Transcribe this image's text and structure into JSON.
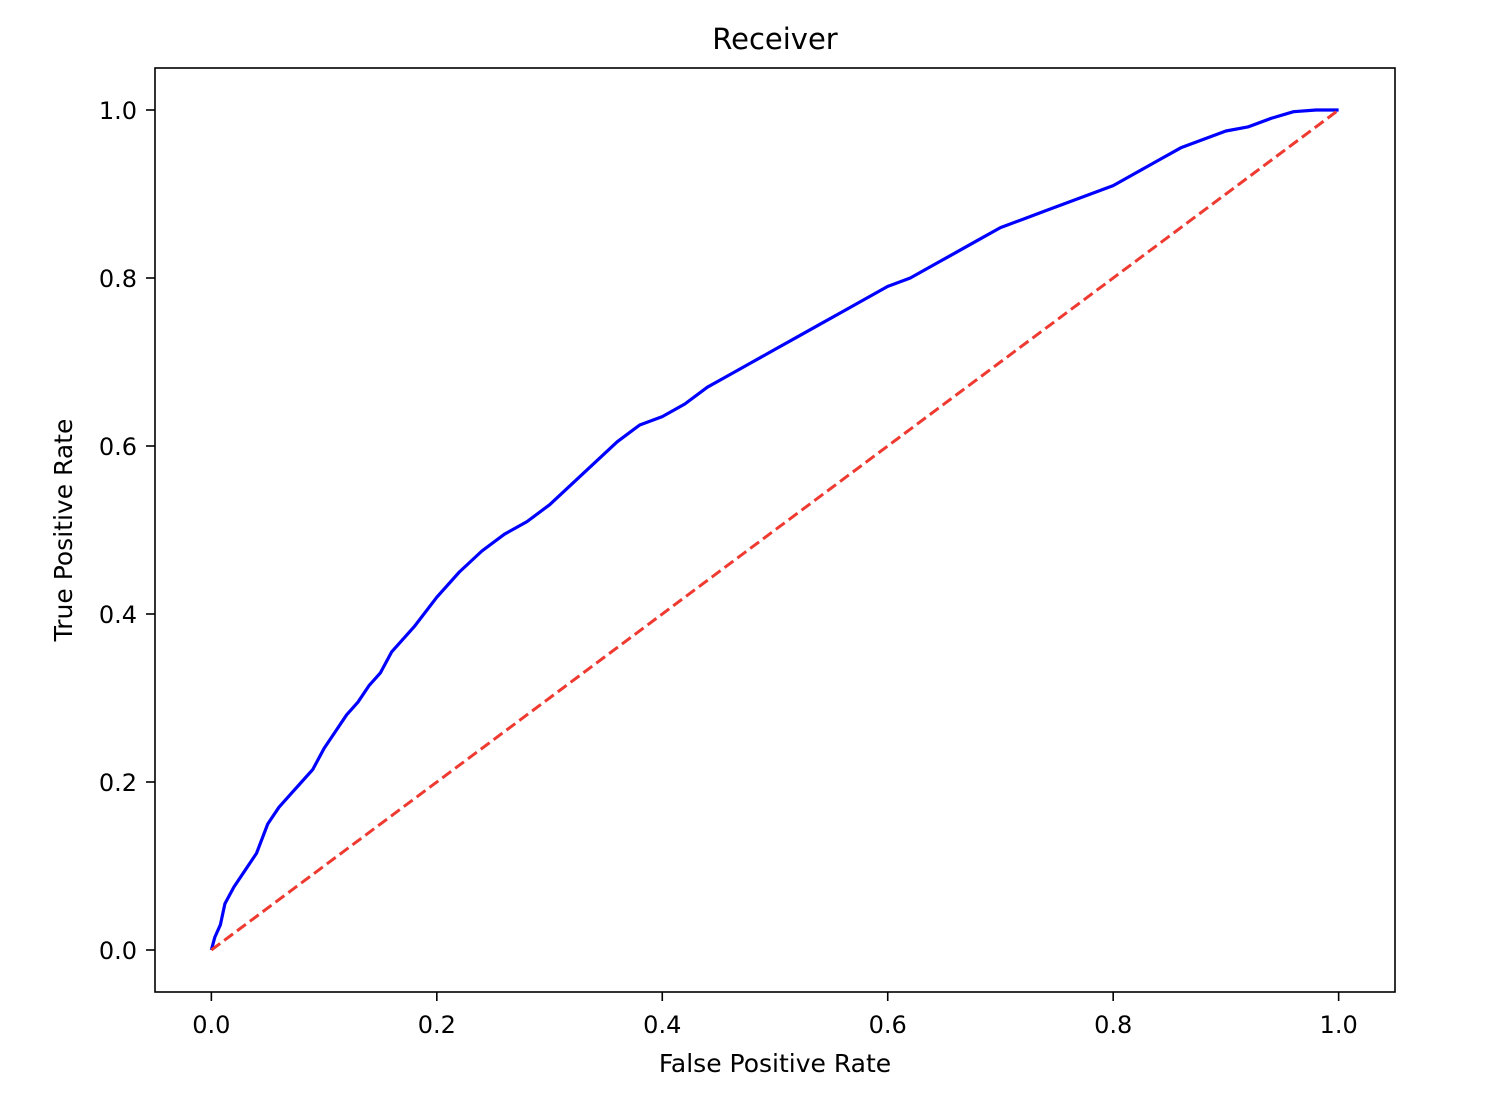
{
  "chart_data": {
    "type": "line",
    "title": "Receiver",
    "xlabel": "False Positive Rate",
    "ylabel": "True Positive Rate",
    "xlim": [
      -0.05,
      1.05
    ],
    "ylim": [
      -0.05,
      1.05
    ],
    "xticks": [
      0.0,
      0.2,
      0.4,
      0.6,
      0.8,
      1.0
    ],
    "yticks": [
      0.0,
      0.2,
      0.4,
      0.6,
      0.8,
      1.0
    ],
    "xtick_labels": [
      "0.0",
      "0.2",
      "0.4",
      "0.6",
      "0.8",
      "1.0"
    ],
    "ytick_labels": [
      "0.0",
      "0.2",
      "0.4",
      "0.6",
      "0.8",
      "1.0"
    ],
    "grid": false,
    "series": [
      {
        "color": "#0000ff",
        "style": "solid",
        "x": [
          0.0,
          0.003,
          0.008,
          0.012,
          0.016,
          0.02,
          0.03,
          0.04,
          0.05,
          0.06,
          0.07,
          0.08,
          0.09,
          0.1,
          0.11,
          0.12,
          0.13,
          0.14,
          0.15,
          0.16,
          0.17,
          0.18,
          0.2,
          0.22,
          0.24,
          0.26,
          0.28,
          0.3,
          0.32,
          0.34,
          0.36,
          0.38,
          0.4,
          0.42,
          0.44,
          0.46,
          0.48,
          0.5,
          0.52,
          0.54,
          0.56,
          0.58,
          0.6,
          0.62,
          0.64,
          0.66,
          0.68,
          0.7,
          0.72,
          0.74,
          0.76,
          0.78,
          0.8,
          0.82,
          0.84,
          0.86,
          0.88,
          0.9,
          0.92,
          0.94,
          0.96,
          0.98,
          1.0
        ],
        "y": [
          0.0,
          0.015,
          0.03,
          0.055,
          0.065,
          0.075,
          0.095,
          0.115,
          0.15,
          0.17,
          0.185,
          0.2,
          0.215,
          0.24,
          0.26,
          0.28,
          0.295,
          0.315,
          0.33,
          0.355,
          0.37,
          0.385,
          0.42,
          0.45,
          0.475,
          0.495,
          0.51,
          0.53,
          0.555,
          0.58,
          0.605,
          0.625,
          0.635,
          0.65,
          0.67,
          0.685,
          0.7,
          0.715,
          0.73,
          0.745,
          0.76,
          0.775,
          0.79,
          0.8,
          0.815,
          0.83,
          0.845,
          0.86,
          0.87,
          0.88,
          0.89,
          0.9,
          0.91,
          0.925,
          0.94,
          0.955,
          0.965,
          0.975,
          0.98,
          0.99,
          0.998,
          1.0,
          1.0
        ]
      },
      {
        "color": "#ee3a30",
        "style": "dashed",
        "x": [
          0.0,
          1.0
        ],
        "y": [
          0.0,
          1.0
        ]
      }
    ]
  }
}
